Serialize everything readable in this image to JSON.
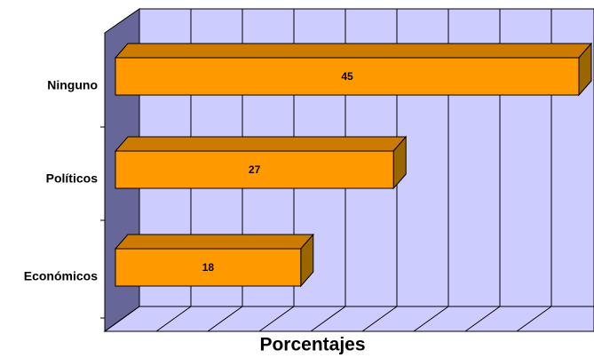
{
  "chart_data": {
    "type": "bar3d_horizontal",
    "x_label": "Porcentajes",
    "categories": [
      "Ninguno",
      "Políticos",
      "Económicos"
    ],
    "values": [
      45,
      27,
      18
    ],
    "color": "#ff9900",
    "xlim": [
      0,
      45
    ],
    "xticks": [
      0,
      5,
      10,
      15,
      20,
      25,
      30,
      35,
      40,
      45
    ],
    "grid": true
  }
}
